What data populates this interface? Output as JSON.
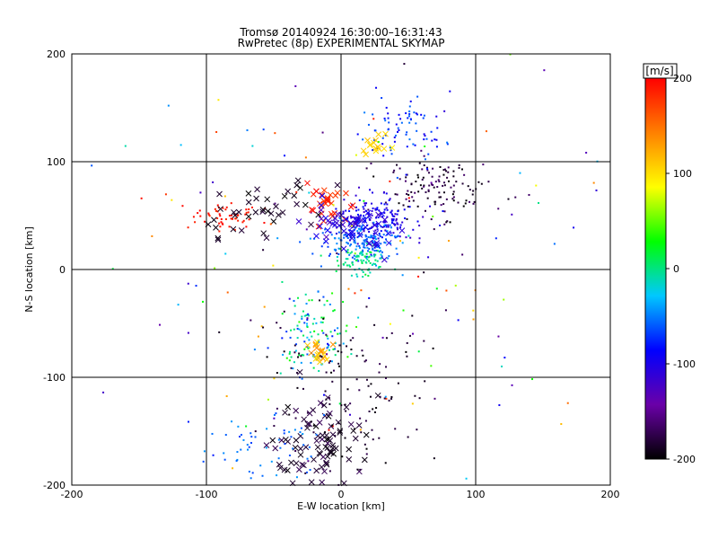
{
  "chart_data": {
    "type": "scatter",
    "title": "Tromsø 20140924 16:30:00–16:31:43",
    "subtitle": "RwPretec (8p) EXPERIMENTAL SKYMAP",
    "xlabel": "E-W location [km]",
    "ylabel": "N-S location [km]",
    "xlim": [
      -200,
      200
    ],
    "ylim": [
      -200,
      200
    ],
    "xticks": [
      -200,
      -100,
      0,
      100,
      200
    ],
    "yticks": [
      -200,
      -100,
      0,
      100,
      200
    ],
    "grid": true,
    "colorbar": {
      "label": "[m/s]",
      "range": [
        -200,
        200
      ],
      "ticks": [
        200,
        100,
        0,
        -100,
        -200
      ],
      "colormap": [
        "#000000",
        "#6a00a8",
        "#0000ff",
        "#00c8ff",
        "#00ff00",
        "#ffff00",
        "#ff8000",
        "#ff0000"
      ]
    },
    "markers": [
      {
        "name": "cross",
        "meaning": "larger marker"
      },
      {
        "name": "dot",
        "meaning": "small marker"
      }
    ],
    "clusters": [
      {
        "label": "north-black-arc",
        "cx": 70,
        "cy": 75,
        "sx": 22,
        "sy": 14,
        "n": 130,
        "v": [
          -200,
          -160
        ],
        "marker": "dot"
      },
      {
        "label": "north-blue",
        "cx": 30,
        "cy": 45,
        "sx": 16,
        "sy": 10,
        "n": 170,
        "v": [
          -120,
          -80
        ],
        "marker": "dot"
      },
      {
        "label": "north-cyan-core",
        "cx": 15,
        "cy": 25,
        "sx": 14,
        "sy": 10,
        "n": 170,
        "v": [
          -70,
          -40
        ],
        "marker": "dot"
      },
      {
        "label": "north-green",
        "cx": 15,
        "cy": 8,
        "sx": 10,
        "sy": 8,
        "n": 80,
        "v": [
          -20,
          20
        ],
        "marker": "dot"
      },
      {
        "label": "west-red",
        "cx": -85,
        "cy": 48,
        "sx": 12,
        "sy": 6,
        "n": 55,
        "v": [
          180,
          200
        ],
        "marker": "dot"
      },
      {
        "label": "center-red",
        "cx": -12,
        "cy": 60,
        "sx": 8,
        "sy": 9,
        "n": 30,
        "v": [
          170,
          200
        ],
        "marker": "cross"
      },
      {
        "label": "north-cyan-top",
        "cx": 50,
        "cy": 130,
        "sx": 18,
        "sy": 14,
        "n": 80,
        "v": [
          -100,
          -50
        ],
        "marker": "dot"
      },
      {
        "label": "north-yellow",
        "cx": 25,
        "cy": 113,
        "sx": 6,
        "sy": 6,
        "n": 15,
        "v": [
          90,
          120
        ],
        "marker": "cross"
      },
      {
        "label": "south-black",
        "cx": -15,
        "cy": -160,
        "sx": 18,
        "sy": 25,
        "n": 90,
        "v": [
          -200,
          -170
        ],
        "marker": "cross"
      },
      {
        "label": "south-mixed",
        "cx": -20,
        "cy": -60,
        "sx": 14,
        "sy": 22,
        "n": 120,
        "v": [
          -80,
          40
        ],
        "marker": "dot"
      },
      {
        "label": "south-orange",
        "cx": -15,
        "cy": -75,
        "sx": 5,
        "sy": 5,
        "n": 20,
        "v": [
          100,
          140
        ],
        "marker": "cross"
      },
      {
        "label": "southwest-cyan",
        "cx": -55,
        "cy": -165,
        "sx": 22,
        "sy": 20,
        "n": 60,
        "v": [
          -70,
          -40
        ],
        "marker": "dot"
      },
      {
        "label": "center-blue-cross",
        "cx": 10,
        "cy": 40,
        "sx": 18,
        "sy": 12,
        "n": 60,
        "v": [
          -130,
          -90
        ],
        "marker": "cross"
      },
      {
        "label": "west-black-cross",
        "cx": -55,
        "cy": 55,
        "sx": 25,
        "sy": 15,
        "n": 40,
        "v": [
          -200,
          -180
        ],
        "marker": "cross"
      },
      {
        "label": "scatter-field",
        "cx": 0,
        "cy": 0,
        "sx": 120,
        "sy": 110,
        "n": 180,
        "v": [
          -200,
          200
        ],
        "marker": "dot"
      },
      {
        "label": "south-black-dots",
        "cx": 5,
        "cy": -110,
        "sx": 30,
        "sy": 45,
        "n": 120,
        "v": [
          -200,
          -170
        ],
        "marker": "dot"
      }
    ]
  }
}
